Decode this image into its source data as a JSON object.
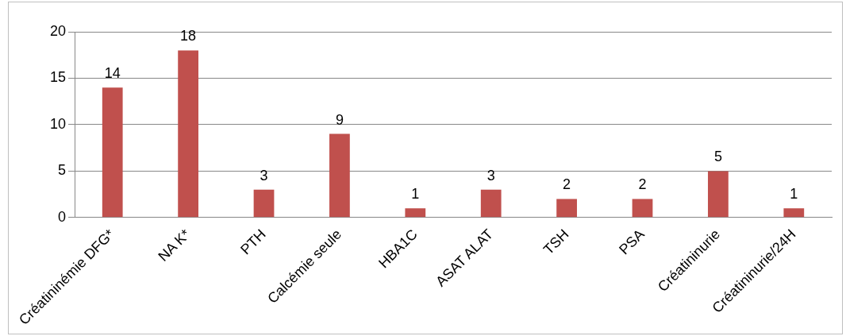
{
  "chart_data": {
    "type": "bar",
    "categories": [
      "Créatininémie DFG*",
      "NA K*",
      "PTH",
      "Calcémie seule",
      "HBA1C",
      "ASAT ALAT",
      "TSH",
      "PSA",
      "Créatininurie",
      "Créatininurie/24H"
    ],
    "values": [
      14,
      18,
      3,
      9,
      1,
      3,
      2,
      2,
      5,
      1
    ],
    "color": "#c0504d",
    "ylim": [
      0,
      20
    ],
    "yticks": [
      0,
      5,
      10,
      15,
      20
    ],
    "grid": "y",
    "data_labels": true
  }
}
